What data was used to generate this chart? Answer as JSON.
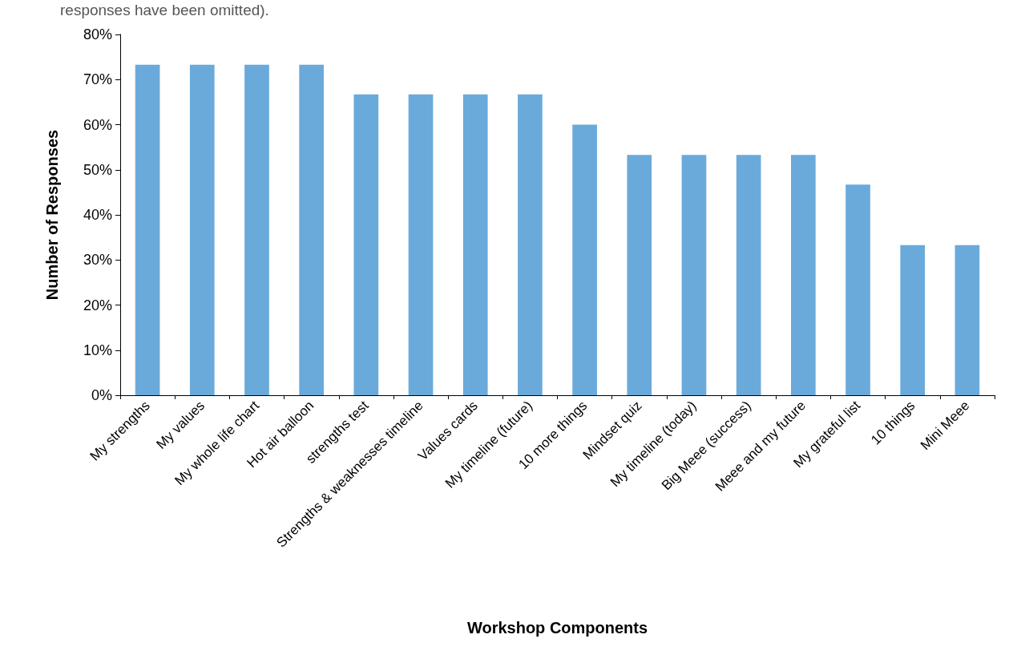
{
  "chart_data": {
    "type": "bar",
    "xlabel": "Workshop Components",
    "ylabel": "Number of Responses",
    "annotations": [
      "responses have been omitted)."
    ],
    "categories": [
      "My strengths",
      "My values",
      "My whole life chart",
      "Hot air balloon",
      "strengths test",
      "Strengths & weaknesses timeline",
      "Values cards",
      "My timeline (future)",
      "10 more things",
      "Mindset quiz",
      "My timeline (today)",
      "Big Meee (success)",
      "Meee and my future",
      "My grateful list",
      "10 things",
      "Mini Meee"
    ],
    "values": [
      73.3,
      73.3,
      73.3,
      73.3,
      66.7,
      66.7,
      66.7,
      66.7,
      60,
      53.3,
      53.3,
      53.3,
      53.3,
      46.7,
      33.3,
      33.3
    ],
    "color": "#6aaadb",
    "ylim": [
      0,
      80
    ],
    "yticks": [
      {
        "value": 0,
        "label": "0%"
      },
      {
        "value": 10,
        "label": "10%"
      },
      {
        "value": 20,
        "label": "20%"
      },
      {
        "value": 30,
        "label": "30%"
      },
      {
        "value": 40,
        "label": "40%"
      },
      {
        "value": 50,
        "label": "50%"
      },
      {
        "value": 60,
        "label": "60%"
      },
      {
        "value": 70,
        "label": "70%"
      },
      {
        "value": 80,
        "label": "80%"
      }
    ],
    "grid": false
  }
}
